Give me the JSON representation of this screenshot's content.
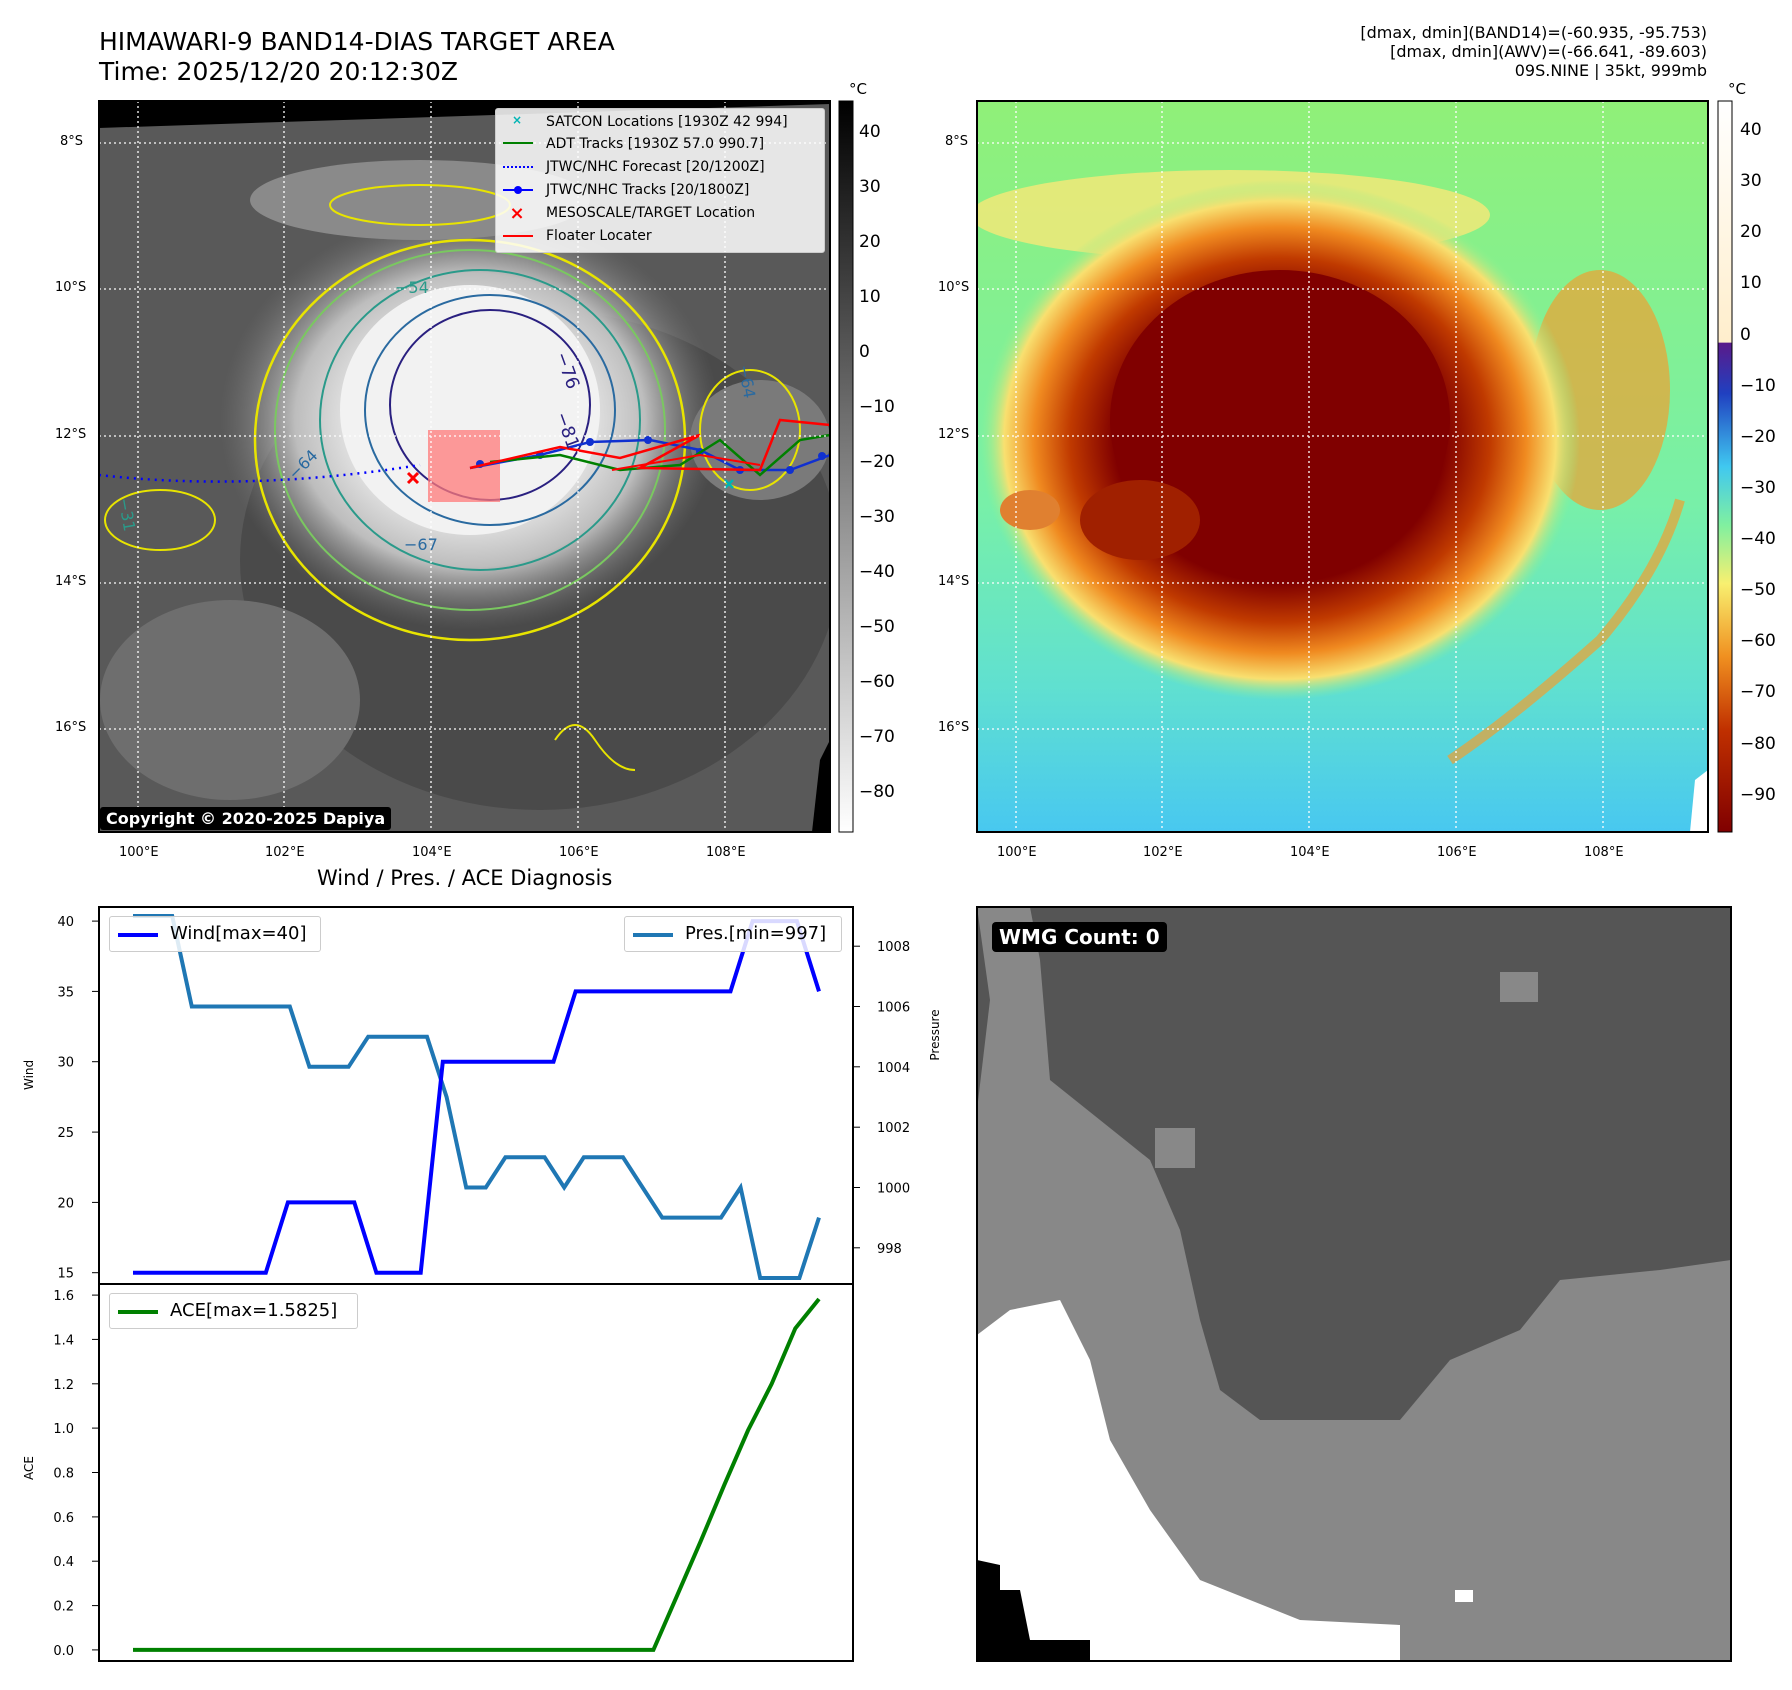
{
  "header": {
    "title_line1": "HIMAWARI-9 BAND14-DIAS TARGET AREA",
    "title_line2": "Time: 2025/12/20 20:12:30Z",
    "info_line1": "[dmax, dmin](BAND14)=(-60.935, -95.753)",
    "info_line2": "[dmax, dmin](AWV)=(-66.641, -89.603)",
    "info_line3": "09S.NINE | 35kt, 999mb"
  },
  "map_ir": {
    "lat_labels": [
      "8°S",
      "10°S",
      "12°S",
      "14°S",
      "16°S"
    ],
    "lon_labels": [
      "100°E",
      "102°E",
      "104°E",
      "106°E",
      "108°E"
    ],
    "colorbar_unit": "°C",
    "colorbar_ticks": [
      "40",
      "30",
      "20",
      "10",
      "0",
      "−10",
      "−20",
      "−30",
      "−40",
      "−50",
      "−60",
      "−70",
      "−80"
    ],
    "copyright": "Copyright © 2020-2025 Dapiya",
    "contour_labels": [
      "−54",
      "−76",
      "−81",
      "−64",
      "−67",
      "−31",
      "−64"
    ],
    "legend": [
      {
        "label": "SATCON Locations [1930Z 42 994]",
        "color": "#00b4b4",
        "marker": "x"
      },
      {
        "label": "ADT Tracks [1930Z 57.0 990.7]",
        "color": "#008000",
        "marker": "line"
      },
      {
        "label": "JTWC/NHC Forecast [20/1200Z]",
        "color": "#0000ff",
        "marker": "dotted"
      },
      {
        "label": "JTWC/NHC Tracks [20/1800Z]",
        "color": "#0000ff",
        "marker": "line-dot"
      },
      {
        "label": "MESOSCALE/TARGET Location",
        "color": "#ff0000",
        "marker": "x"
      },
      {
        "label": "Floater Locater",
        "color": "#ff0000",
        "marker": "line"
      }
    ]
  },
  "map_awv": {
    "lat_labels": [
      "8°S",
      "10°S",
      "12°S",
      "14°S",
      "16°S"
    ],
    "lon_labels": [
      "100°E",
      "102°E",
      "104°E",
      "106°E",
      "108°E"
    ],
    "colorbar_unit": "°C",
    "colorbar_ticks": [
      "40",
      "30",
      "20",
      "10",
      "0",
      "−10",
      "−20",
      "−30",
      "−40",
      "−50",
      "−60",
      "−70",
      "−80",
      "−90"
    ]
  },
  "diag": {
    "title": "Wind / Pres. / ACE Diagnosis",
    "wind_ylabel": "Wind",
    "pres_ylabel": "Pressure",
    "ace_ylabel": "ACE",
    "wind_legend": "Wind[max=40]",
    "pres_legend": "Pres.[min=997]",
    "ace_legend": "ACE[max=1.5825]",
    "wind_color": "#0000ff",
    "pres_color": "#1f77b4",
    "ace_color": "#008000"
  },
  "wmg": {
    "label": "WMG Count: 0"
  },
  "chart_data": [
    {
      "type": "line",
      "title": "Wind / Pres. / ACE Diagnosis",
      "ylabel": "Wind",
      "ylim": [
        14.2,
        41
      ],
      "y_ticks": [
        15,
        20,
        25,
        30,
        35,
        40
      ],
      "series": [
        {
          "name": "Wind[max=40]",
          "values": [
            15,
            15,
            15,
            15,
            15,
            15,
            15,
            20,
            20,
            20,
            20,
            15,
            15,
            15,
            30,
            30,
            30,
            30,
            30,
            30,
            35,
            35,
            35,
            35,
            35,
            35,
            35,
            35,
            40,
            40,
            40,
            35
          ]
        }
      ]
    },
    {
      "type": "line",
      "ylabel": "Pressure",
      "ylim": [
        996.8,
        1009.3
      ],
      "y_ticks": [
        998,
        1000,
        1002,
        1004,
        1006,
        1008
      ],
      "series": [
        {
          "name": "Pres.[min=997]",
          "values": [
            1009,
            1009,
            1009,
            1006,
            1006,
            1006,
            1006,
            1006,
            1006,
            1004,
            1004,
            1004,
            1005,
            1005,
            1005,
            1005,
            1003,
            1000,
            1000,
            1001,
            1001,
            1001,
            1000,
            1001,
            1001,
            1001,
            1000,
            999,
            999,
            999,
            999,
            1000,
            997,
            997,
            997,
            999
          ]
        }
      ]
    },
    {
      "type": "line",
      "ylabel": "ACE",
      "ylim": [
        -0.05,
        1.65
      ],
      "y_ticks": [
        0.0,
        0.2,
        0.4,
        0.6,
        0.8,
        1.0,
        1.2,
        1.4,
        1.6
      ],
      "series": [
        {
          "name": "ACE[max=1.5825]",
          "values": [
            0,
            0,
            0,
            0,
            0,
            0,
            0,
            0,
            0,
            0,
            0,
            0,
            0,
            0,
            0,
            0,
            0,
            0,
            0,
            0,
            0,
            0,
            0,
            0.245,
            0.49,
            0.745,
            0.99,
            1.2,
            1.45,
            1.5825
          ]
        }
      ]
    }
  ]
}
